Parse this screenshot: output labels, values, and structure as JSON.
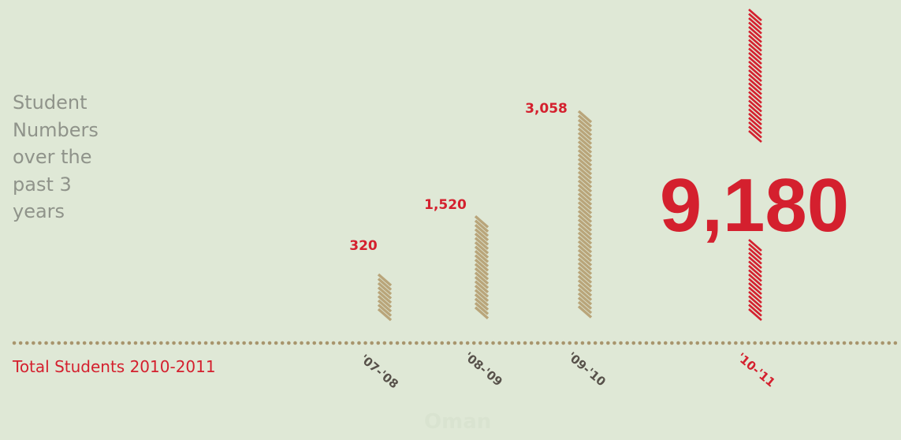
{
  "side_title_lines": [
    "Student",
    "Numbers",
    "over the",
    "past 3",
    "years"
  ],
  "total_label": "Total Students 2010-2011",
  "watermark": "Oman",
  "colors": {
    "background": "#dfe8d6",
    "bar_past": "#b9a57a",
    "highlight": "#d4202e",
    "baseline": "#a8956d",
    "label_dark": "#57514a",
    "title_gray": "#8f938a"
  },
  "chart_data": {
    "type": "bar",
    "categories": [
      "'07-'08",
      "'08-'09",
      "'09-'10",
      "'10-'11"
    ],
    "value_labels": [
      "320",
      "1,520",
      "3,058",
      "9,180"
    ],
    "values": [
      320,
      1520,
      3058,
      9180
    ],
    "highlight_index": 3,
    "title": "",
    "xlabel": "",
    "ylabel": ""
  }
}
